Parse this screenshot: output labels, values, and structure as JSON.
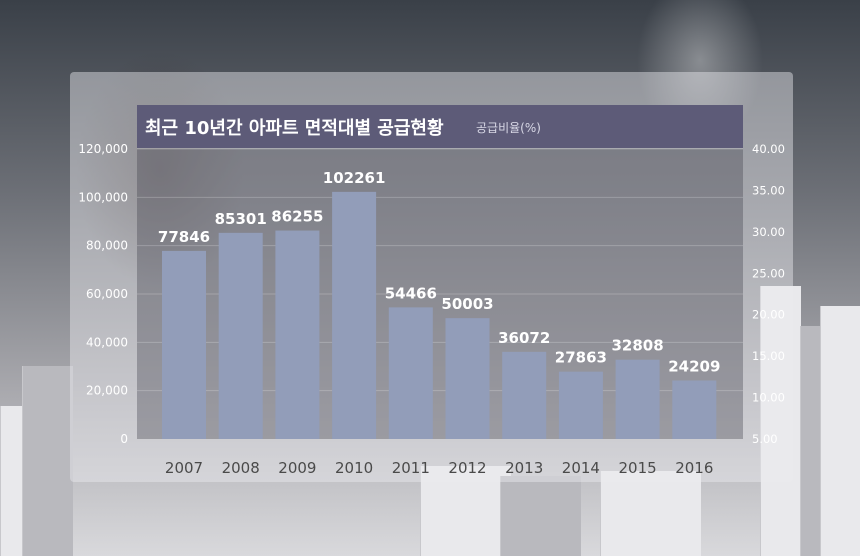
{
  "chart_data": {
    "type": "bar",
    "title": "최근 10년간 아파트 면적대별 공급현황",
    "subtitle": "공급비율(%)",
    "categories": [
      "2007",
      "2008",
      "2009",
      "2010",
      "2011",
      "2012",
      "2013",
      "2014",
      "2015",
      "2016"
    ],
    "values": [
      77846,
      85301,
      86255,
      102261,
      54466,
      50003,
      36072,
      27863,
      32808,
      24209
    ],
    "value_labels": [
      "77846",
      "85301",
      "86255",
      "102261",
      "54466",
      "50003",
      "36072",
      "27863",
      "32808",
      "24209"
    ],
    "ylim": [
      0,
      120000
    ],
    "y_ticks": [
      "0",
      "20,000",
      "40,000",
      "60,000",
      "80,000",
      "100,000",
      "120,000"
    ],
    "y2lim": [
      5,
      40
    ],
    "y2_ticks": [
      "5.00",
      "10.00",
      "15.00",
      "20.00",
      "25.00",
      "30.00",
      "35.00",
      "40.00"
    ],
    "grid": true,
    "colors": {
      "bar": "#929db9",
      "title_bar": "#5d5b78"
    }
  }
}
